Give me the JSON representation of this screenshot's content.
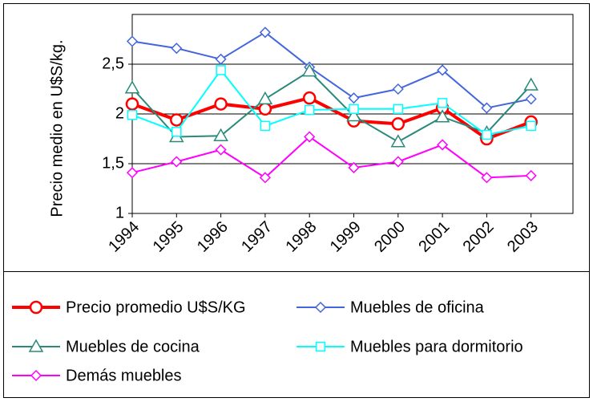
{
  "chart_data": {
    "type": "line",
    "y_label": "Precio medio en U$S/kg.",
    "categories": [
      "1994",
      "1995",
      "1996",
      "1997",
      "1998",
      "1999",
      "2000",
      "2001",
      "2002",
      "2003"
    ],
    "series": [
      {
        "name": "Precio promedio U$S/KG",
        "color": "#ff0000",
        "marker": "circle",
        "values": [
          2.1,
          1.94,
          2.1,
          2.05,
          2.16,
          1.93,
          1.9,
          2.06,
          1.75,
          1.92
        ]
      },
      {
        "name": "Muebles de oficina",
        "color": "#4466dd",
        "marker": "diamond",
        "values": [
          2.73,
          2.66,
          2.55,
          2.82,
          2.47,
          2.16,
          2.25,
          2.44,
          2.06,
          2.15
        ]
      },
      {
        "name": "Muebles de cocina",
        "color": "#2a8a7a",
        "marker": "triangle",
        "values": [
          2.26,
          1.77,
          1.78,
          2.15,
          2.43,
          1.98,
          1.72,
          1.97,
          1.81,
          2.29
        ]
      },
      {
        "name": "Muebles para dormitorio",
        "color": "#00ffff",
        "marker": "square",
        "values": [
          1.99,
          1.82,
          2.44,
          1.88,
          2.04,
          2.05,
          2.05,
          2.11,
          1.79,
          1.88
        ]
      },
      {
        "name": "Demás muebles",
        "color": "#ff00ff",
        "marker": "diamond",
        "values": [
          1.41,
          1.52,
          1.64,
          1.36,
          1.77,
          1.46,
          1.52,
          1.69,
          1.36,
          1.38
        ]
      }
    ],
    "ylim": [
      1,
      3
    ],
    "yticks": [
      1,
      {
        "value": 1.5,
        "label": "1,5"
      },
      2,
      {
        "value": 2.5,
        "label": "2,5"
      }
    ],
    "grid": true,
    "legend": "bottom"
  }
}
